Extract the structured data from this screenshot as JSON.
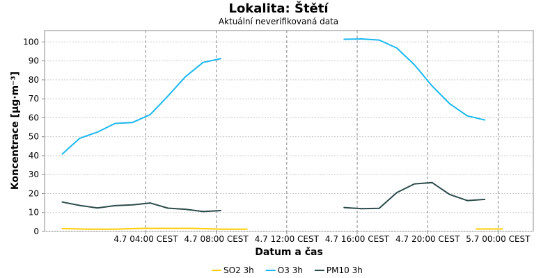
{
  "chart_data": {
    "type": "line",
    "title": "Lokalita: Štětí",
    "subtitle": "Aktuální neverifikovaná data",
    "xlabel": "Datum a čas",
    "ylabel": "Koncentrace [µg·m⁻³]",
    "ylim": [
      0,
      106
    ],
    "yticks": [
      0,
      10,
      20,
      30,
      40,
      50,
      60,
      70,
      80,
      90,
      100
    ],
    "x_hour_range": [
      -1.75,
      26.0
    ],
    "xticks": [
      {
        "hour": 4,
        "label": "4.7 04:00 CEST"
      },
      {
        "hour": 8,
        "label": "4.7 08:00 CEST"
      },
      {
        "hour": 12,
        "label": "4.7 12:00 CEST"
      },
      {
        "hour": 16,
        "label": "4.7 16:00 CEST"
      },
      {
        "hour": 20,
        "label": "4.7 20:00 CEST"
      },
      {
        "hour": 24,
        "label": "5.7 00:00 CEST"
      }
    ],
    "grid": true,
    "legend_position": "bottom",
    "series": [
      {
        "name": "SO2 3h",
        "color": "#ffcc00",
        "segments": [
          [
            [
              -0.75,
              1.5
            ],
            [
              0.75,
              1.2
            ],
            [
              2.25,
              1.2
            ],
            [
              3.75,
              1.6
            ],
            [
              5.25,
              1.6
            ],
            [
              6.75,
              1.6
            ],
            [
              8.25,
              1.2
            ],
            [
              9.75,
              1.2
            ]
          ],
          [
            [
              22.75,
              1.3
            ],
            [
              24.25,
              1.3
            ]
          ]
        ]
      },
      {
        "name": "O3 3h",
        "color": "#1ab8f0",
        "segments": [
          [
            [
              -0.75,
              40.8
            ],
            [
              0.25,
              49.2
            ],
            [
              1.25,
              52.4
            ],
            [
              2.25,
              57.0
            ],
            [
              3.25,
              57.5
            ],
            [
              4.25,
              61.7
            ],
            [
              5.25,
              71.4
            ],
            [
              6.25,
              81.7
            ],
            [
              7.25,
              89.2
            ],
            [
              8.25,
              91.2
            ]
          ],
          [
            [
              15.25,
              101.4
            ],
            [
              16.25,
              101.6
            ],
            [
              17.25,
              101.0
            ],
            [
              18.25,
              96.8
            ],
            [
              19.25,
              88.0
            ],
            [
              20.25,
              76.8
            ],
            [
              21.25,
              67.4
            ],
            [
              22.25,
              61.0
            ],
            [
              23.25,
              58.8
            ]
          ]
        ]
      },
      {
        "name": "PM10 3h",
        "color": "#2b4a4a",
        "segments": [
          [
            [
              -0.75,
              15.5
            ],
            [
              0.25,
              13.7
            ],
            [
              1.25,
              12.4
            ],
            [
              2.25,
              13.6
            ],
            [
              3.25,
              14.0
            ],
            [
              4.25,
              15.0
            ],
            [
              5.25,
              12.3
            ],
            [
              6.25,
              11.7
            ],
            [
              7.25,
              10.5
            ],
            [
              8.25,
              11.0
            ]
          ],
          [
            [
              15.25,
              12.6
            ],
            [
              16.25,
              12.0
            ],
            [
              17.25,
              12.2
            ],
            [
              18.25,
              20.5
            ],
            [
              19.25,
              25.1
            ],
            [
              20.25,
              25.8
            ],
            [
              21.25,
              19.5
            ],
            [
              22.25,
              16.3
            ],
            [
              23.25,
              16.9
            ]
          ]
        ]
      }
    ]
  }
}
